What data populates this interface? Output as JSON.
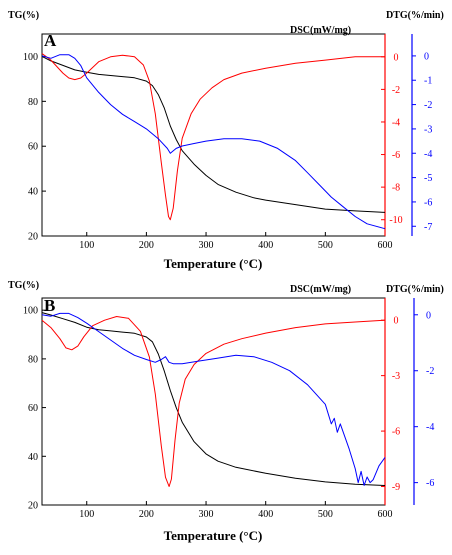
{
  "chart_data": [
    {
      "type": "line",
      "panel_label": "A",
      "xlabel": "Temperature (°C)",
      "xlim": [
        25,
        600
      ],
      "xticks": [
        100,
        200,
        300,
        400,
        500,
        600
      ],
      "axes": {
        "tg": {
          "label": "TG(%)",
          "lim": [
            20,
            110
          ],
          "ticks": [
            20,
            40,
            60,
            80,
            100
          ],
          "color": "#000000"
        },
        "dsc": {
          "label": "DSC(mW/mg)",
          "lim": [
            -11,
            1.4
          ],
          "ticks": [
            0,
            -2,
            -4,
            -6,
            -8,
            -10
          ],
          "color": "#ff0000"
        },
        "dtg": {
          "label": "DTG(%/min)",
          "lim": [
            -7.4,
            0.9
          ],
          "ticks": [
            0,
            -1,
            -2,
            -3,
            -4,
            -5,
            -6,
            -7
          ],
          "color": "#0000ff"
        }
      },
      "series": [
        {
          "axis": "tg",
          "color": "#000000",
          "x": [
            25,
            40,
            60,
            80,
            100,
            120,
            140,
            160,
            180,
            200,
            210,
            220,
            230,
            240,
            250,
            260,
            280,
            300,
            320,
            350,
            380,
            400,
            450,
            500,
            550,
            600
          ],
          "y": [
            100,
            98,
            96,
            94,
            93,
            92,
            91.5,
            91,
            90.5,
            89,
            87,
            83,
            77,
            69,
            63,
            58,
            52,
            47,
            43,
            39.5,
            37,
            36,
            34,
            32,
            31.2,
            30.5
          ]
        },
        {
          "axis": "dsc",
          "color": "#ff0000",
          "x": [
            25,
            40,
            50,
            60,
            70,
            80,
            90,
            100,
            120,
            140,
            160,
            180,
            195,
            205,
            215,
            225,
            232,
            237,
            240,
            245,
            252,
            260,
            275,
            290,
            310,
            330,
            360,
            400,
            450,
            500,
            550,
            600
          ],
          "y": [
            0.2,
            -0.2,
            -0.6,
            -1.0,
            -1.3,
            -1.4,
            -1.3,
            -1.0,
            -0.3,
            0.0,
            0.1,
            0.0,
            -0.5,
            -1.5,
            -3.5,
            -6.5,
            -8.5,
            -9.8,
            -10.0,
            -9.3,
            -7.0,
            -5.0,
            -3.5,
            -2.6,
            -1.9,
            -1.4,
            -1.0,
            -0.7,
            -0.4,
            -0.2,
            0.0,
            0.0
          ]
        },
        {
          "axis": "dtg",
          "color": "#0000ff",
          "x": [
            25,
            40,
            55,
            70,
            80,
            90,
            100,
            120,
            140,
            160,
            180,
            200,
            220,
            235,
            240,
            250,
            260,
            280,
            300,
            330,
            360,
            390,
            420,
            450,
            470,
            490,
            510,
            530,
            550,
            570,
            600
          ],
          "y": [
            0.0,
            -0.1,
            0.05,
            0.05,
            -0.1,
            -0.4,
            -0.9,
            -1.5,
            -2.0,
            -2.4,
            -2.7,
            -3.0,
            -3.4,
            -3.8,
            -4.0,
            -3.8,
            -3.7,
            -3.6,
            -3.5,
            -3.4,
            -3.4,
            -3.5,
            -3.8,
            -4.3,
            -4.8,
            -5.3,
            -5.8,
            -6.2,
            -6.6,
            -6.9,
            -7.1
          ]
        }
      ]
    },
    {
      "type": "line",
      "panel_label": "B",
      "xlabel": "Temperature (°C)",
      "xlim": [
        25,
        600
      ],
      "xticks": [
        100,
        200,
        300,
        400,
        500,
        600
      ],
      "axes": {
        "tg": {
          "label": "TG(%)",
          "lim": [
            20,
            105
          ],
          "ticks": [
            20,
            40,
            60,
            80,
            100
          ],
          "color": "#000000"
        },
        "dsc": {
          "label": "DSC(mW/mg)",
          "lim": [
            -10,
            1.2
          ],
          "ticks": [
            0,
            -3,
            -6,
            -9
          ],
          "color": "#ff0000"
        },
        "dtg": {
          "label": "DTG(%/min)",
          "lim": [
            -6.8,
            0.6
          ],
          "ticks": [
            0,
            -2,
            -4,
            -6
          ],
          "color": "#0000ff"
        }
      },
      "series": [
        {
          "axis": "tg",
          "color": "#000000",
          "x": [
            25,
            40,
            60,
            80,
            100,
            120,
            140,
            160,
            180,
            200,
            210,
            220,
            230,
            240,
            250,
            260,
            280,
            300,
            320,
            350,
            400,
            450,
            500,
            550,
            600
          ],
          "y": [
            99,
            98,
            96.5,
            95,
            93,
            92,
            91.5,
            91,
            90.5,
            89,
            87,
            82,
            75,
            67,
            60,
            54,
            46,
            41,
            38,
            35.5,
            33,
            31,
            29.5,
            28.5,
            28
          ]
        },
        {
          "axis": "dsc",
          "color": "#ff0000",
          "x": [
            25,
            40,
            55,
            65,
            75,
            85,
            95,
            110,
            130,
            150,
            170,
            190,
            205,
            215,
            225,
            232,
            238,
            242,
            248,
            255,
            265,
            280,
            300,
            330,
            360,
            400,
            450,
            500,
            550,
            600
          ],
          "y": [
            0.0,
            -0.4,
            -1.0,
            -1.5,
            -1.6,
            -1.4,
            -0.9,
            -0.3,
            0.0,
            0.2,
            0.1,
            -0.6,
            -2.0,
            -4.0,
            -6.8,
            -8.5,
            -9.0,
            -8.6,
            -6.5,
            -4.5,
            -3.2,
            -2.4,
            -1.8,
            -1.3,
            -1.0,
            -0.7,
            -0.4,
            -0.2,
            -0.1,
            0.0
          ]
        },
        {
          "axis": "dtg",
          "color": "#0000ff",
          "x": [
            25,
            40,
            55,
            70,
            85,
            100,
            120,
            140,
            160,
            180,
            200,
            215,
            225,
            232,
            238,
            245,
            260,
            290,
            320,
            350,
            380,
            410,
            440,
            470,
            500,
            510,
            515,
            520,
            525,
            540,
            550,
            555,
            560,
            565,
            570,
            575,
            580,
            590,
            600
          ],
          "y": [
            0.0,
            -0.05,
            0.05,
            0.05,
            -0.1,
            -0.3,
            -0.6,
            -0.9,
            -1.2,
            -1.45,
            -1.6,
            -1.7,
            -1.6,
            -1.5,
            -1.7,
            -1.75,
            -1.75,
            -1.65,
            -1.55,
            -1.45,
            -1.5,
            -1.7,
            -2.0,
            -2.5,
            -3.2,
            -3.9,
            -3.7,
            -4.2,
            -3.9,
            -4.8,
            -5.5,
            -6.0,
            -5.6,
            -6.1,
            -5.8,
            -6.0,
            -5.9,
            -5.4,
            -5.1
          ]
        }
      ]
    }
  ]
}
